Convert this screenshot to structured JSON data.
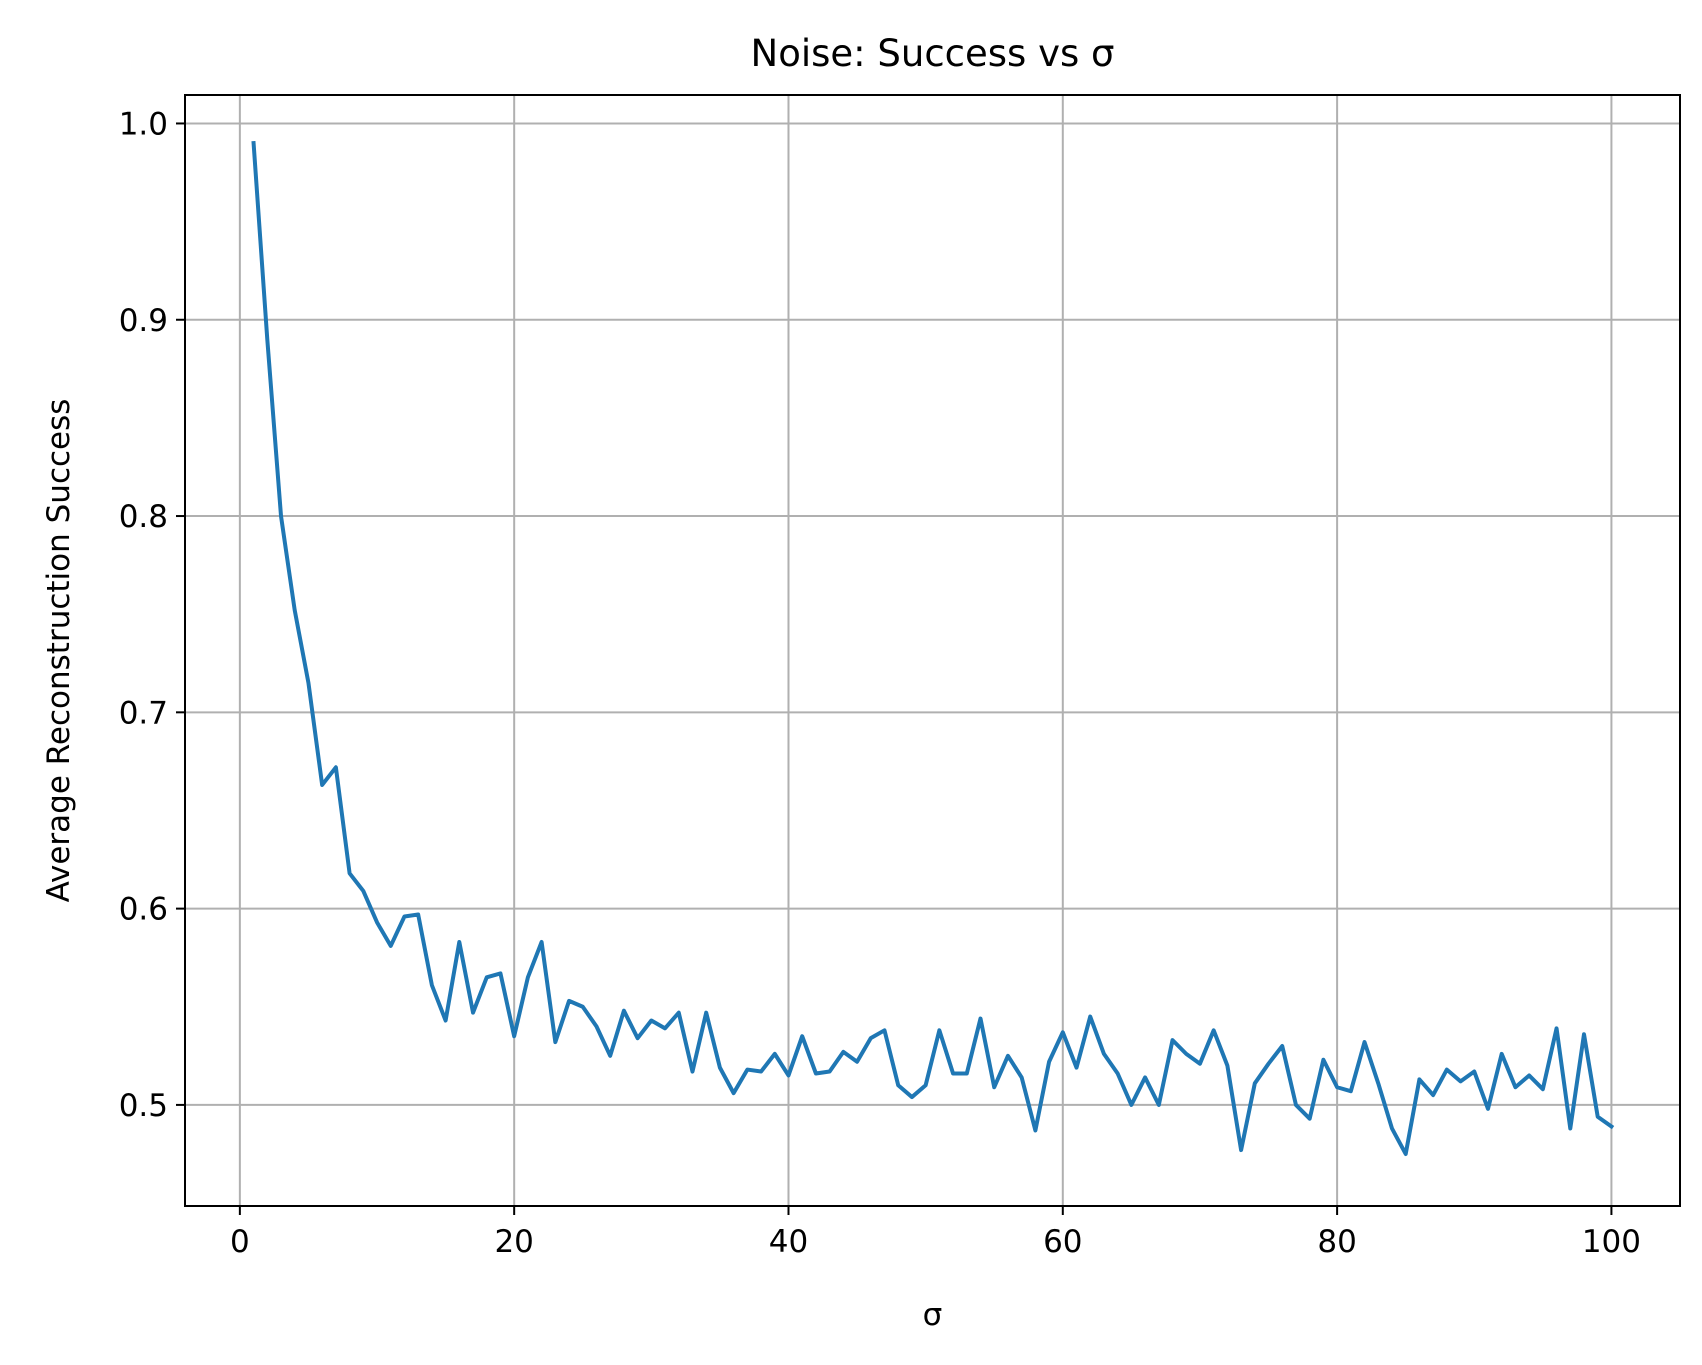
{
  "chart_data": {
    "type": "line",
    "title": "Noise: Success vs σ",
    "xlabel": "σ",
    "ylabel": "Average Reconstruction Success",
    "xlim": [
      -4.0,
      105.0
    ],
    "ylim": [
      0.4485,
      1.0145
    ],
    "xticks": [
      0,
      20,
      40,
      60,
      80,
      100
    ],
    "xtick_labels": [
      "0",
      "20",
      "40",
      "60",
      "80",
      "100"
    ],
    "yticks": [
      0.5,
      0.6,
      0.7,
      0.8,
      0.9,
      1.0
    ],
    "ytick_labels": [
      "0.5",
      "0.6",
      "0.7",
      "0.8",
      "0.9",
      "1.0"
    ],
    "grid": true,
    "series": [
      {
        "color": "#1f77b4",
        "x": [
          1,
          2,
          3,
          4,
          5,
          6,
          7,
          8,
          9,
          10,
          11,
          12,
          13,
          14,
          15,
          16,
          17,
          18,
          19,
          20,
          21,
          22,
          23,
          24,
          25,
          26,
          27,
          28,
          29,
          30,
          31,
          32,
          33,
          34,
          35,
          36,
          37,
          38,
          39,
          40,
          41,
          42,
          43,
          44,
          45,
          46,
          47,
          48,
          49,
          50,
          51,
          52,
          53,
          54,
          55,
          56,
          57,
          58,
          59,
          60,
          61,
          62,
          63,
          64,
          65,
          66,
          67,
          68,
          69,
          70,
          71,
          72,
          73,
          74,
          75,
          76,
          77,
          78,
          79,
          80,
          81,
          82,
          83,
          84,
          85,
          86,
          87,
          88,
          89,
          90,
          91,
          92,
          93,
          94,
          95,
          96,
          97,
          98,
          99,
          100
        ],
        "y": [
          0.99,
          0.89,
          0.8,
          0.752,
          0.715,
          0.663,
          0.672,
          0.618,
          0.609,
          0.593,
          0.581,
          0.596,
          0.597,
          0.561,
          0.543,
          0.583,
          0.547,
          0.565,
          0.567,
          0.535,
          0.565,
          0.583,
          0.532,
          0.553,
          0.55,
          0.54,
          0.525,
          0.548,
          0.534,
          0.543,
          0.539,
          0.547,
          0.517,
          0.547,
          0.519,
          0.506,
          0.518,
          0.517,
          0.526,
          0.515,
          0.535,
          0.516,
          0.517,
          0.527,
          0.522,
          0.534,
          0.538,
          0.51,
          0.504,
          0.51,
          0.538,
          0.516,
          0.516,
          0.544,
          0.509,
          0.525,
          0.514,
          0.487,
          0.522,
          0.537,
          0.519,
          0.545,
          0.526,
          0.516,
          0.5,
          0.514,
          0.5,
          0.533,
          0.526,
          0.521,
          0.538,
          0.52,
          0.477,
          0.511,
          0.521,
          0.53,
          0.5,
          0.493,
          0.523,
          0.509,
          0.507,
          0.532,
          0.511,
          0.488,
          0.475,
          0.513,
          0.505,
          0.518,
          0.512,
          0.517,
          0.498,
          0.526,
          0.509,
          0.515,
          0.508,
          0.539,
          0.488,
          0.536,
          0.494,
          0.489
        ]
      }
    ]
  }
}
